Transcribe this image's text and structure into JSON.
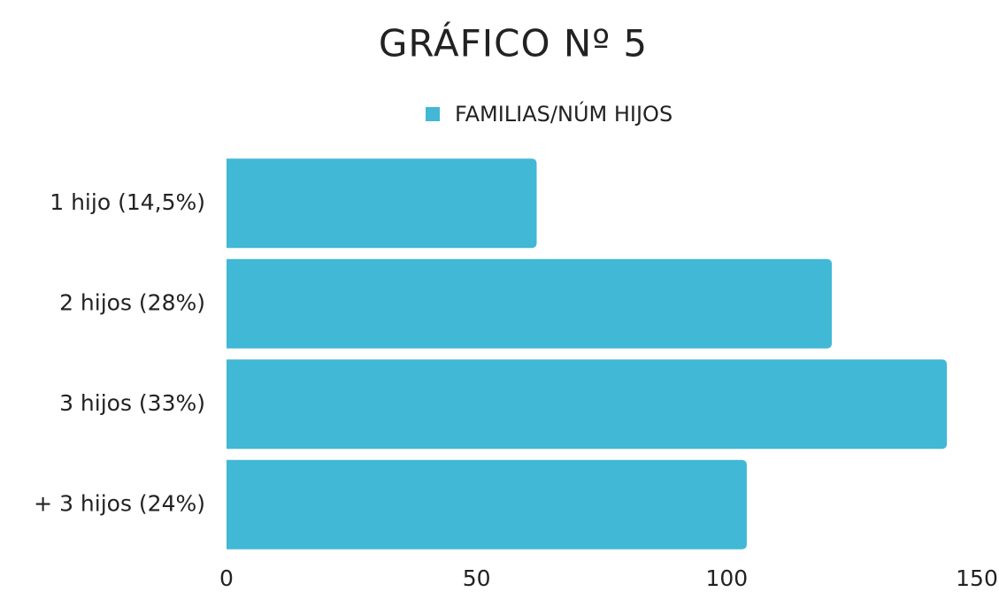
{
  "chart_data": {
    "type": "hbar",
    "title": "GRÁFICO Nº 5",
    "categories": [
      "1 hijo (14,5%)",
      "2 hijos (28%)",
      "3 hijos (33%)",
      "+ 3 hijos (24%)"
    ],
    "series": [
      {
        "name": "FAMILIAS/NÚM HIJOS",
        "color": "#41b8d5",
        "values": [
          62,
          121,
          144,
          104
        ]
      }
    ],
    "xlim": [
      0,
      150
    ],
    "xticks": [
      0,
      50,
      100,
      150
    ],
    "grid": false,
    "legend": "top"
  }
}
